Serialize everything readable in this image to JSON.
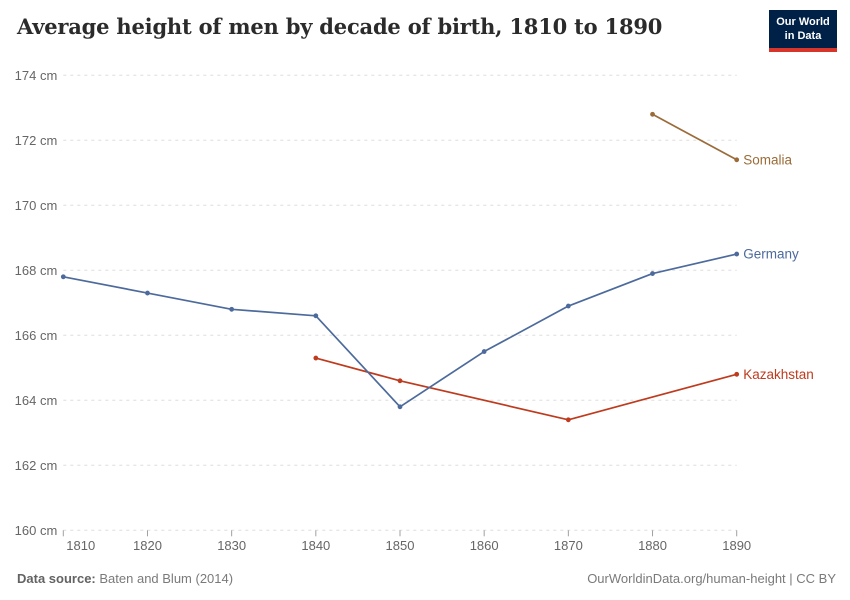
{
  "title": "Average height of men by decade of birth, 1810 to 1890",
  "logo": {
    "line1": "Our World",
    "line2": "in Data"
  },
  "footer": {
    "source_label": "Data source:",
    "source_value": "Baten and Blum (2014)",
    "link": "OurWorldinData.org/human-height | CC BY"
  },
  "colors": {
    "logo_bg": "#002147",
    "logo_bar": "#d5352b",
    "grid": "#dddddd",
    "tick": "#a0a0a0",
    "axis_text": "#666666",
    "title_text": "#2b2b2b",
    "footer_text": "#7a7a7a"
  },
  "chart_data": {
    "type": "line",
    "title": "Average height of men by decade of birth, 1810 to 1890",
    "xlabel": "",
    "ylabel": "",
    "ylim": [
      160,
      174
    ],
    "yticks": [
      160,
      162,
      164,
      166,
      168,
      170,
      172,
      174
    ],
    "ytick_suffix": " cm",
    "xticks": [
      1810,
      1820,
      1830,
      1840,
      1850,
      1860,
      1870,
      1880,
      1890
    ],
    "grid": "horizontal-dashed",
    "legend_position": "end-of-line-labels",
    "series": [
      {
        "name": "Germany",
        "color": "#4C6A9C",
        "points": [
          [
            1810,
            167.8
          ],
          [
            1820,
            167.3
          ],
          [
            1830,
            166.8
          ],
          [
            1840,
            166.6
          ],
          [
            1850,
            163.8
          ],
          [
            1860,
            165.5
          ],
          [
            1870,
            166.9
          ],
          [
            1880,
            167.9
          ],
          [
            1890,
            168.5
          ]
        ]
      },
      {
        "name": "Kazakhstan",
        "color": "#BE3B1E",
        "points": [
          [
            1840,
            165.3
          ],
          [
            1850,
            164.6
          ],
          [
            1870,
            163.4
          ],
          [
            1890,
            164.8
          ]
        ]
      },
      {
        "name": "Somalia",
        "color": "#9B6C39",
        "points": [
          [
            1880,
            172.8
          ],
          [
            1890,
            171.4
          ]
        ]
      }
    ]
  }
}
